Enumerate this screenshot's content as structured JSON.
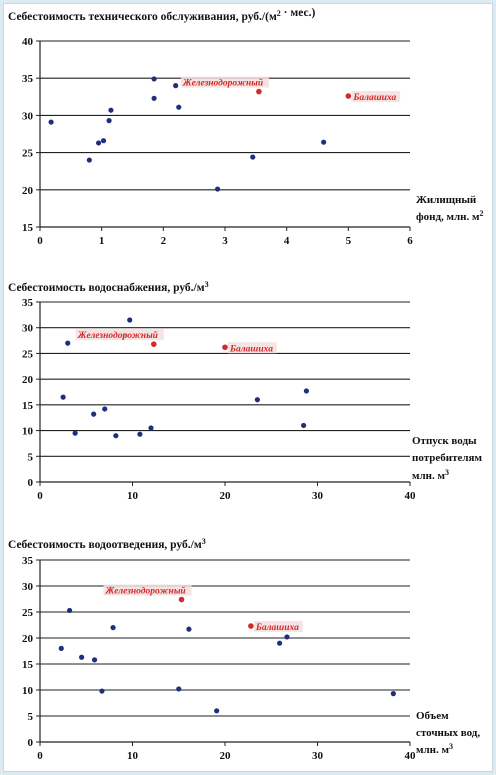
{
  "chart_data": [
    {
      "type": "scatter",
      "title": "Себестоимость технического обслуживания, руб./(м² · мес.)",
      "side_label": [
        "Жилищный",
        "фонд, млн. м²"
      ],
      "xlim": [
        0,
        6
      ],
      "ylim": [
        15,
        40
      ],
      "xticks": [
        0,
        1,
        2,
        3,
        4,
        5,
        6
      ],
      "yticks": [
        15,
        20,
        25,
        30,
        35,
        40
      ],
      "grid": "horizontal",
      "points": [
        {
          "x": 0.18,
          "y": 29.1
        },
        {
          "x": 0.8,
          "y": 24.0
        },
        {
          "x": 0.95,
          "y": 26.3
        },
        {
          "x": 1.03,
          "y": 26.6
        },
        {
          "x": 1.12,
          "y": 29.3
        },
        {
          "x": 1.15,
          "y": 30.7
        },
        {
          "x": 1.85,
          "y": 34.9
        },
        {
          "x": 1.85,
          "y": 32.3
        },
        {
          "x": 2.2,
          "y": 34.0
        },
        {
          "x": 2.25,
          "y": 31.1
        },
        {
          "x": 2.88,
          "y": 20.1
        },
        {
          "x": 3.45,
          "y": 24.4
        },
        {
          "x": 4.6,
          "y": 26.4
        }
      ],
      "highlight": [
        {
          "label": "Железнодорожный",
          "x": 3.55,
          "y": 33.2
        },
        {
          "label": "Балашиха",
          "x": 5.0,
          "y": 32.6
        }
      ]
    },
    {
      "type": "scatter",
      "title": "Себестоимость водоснабжения, руб./м³",
      "side_label": [
        "Отпуск воды",
        "потребителям",
        "млн. м³"
      ],
      "xlim": [
        0,
        40
      ],
      "ylim": [
        0,
        35
      ],
      "xticks": [
        0,
        10,
        20,
        30,
        40
      ],
      "yticks": [
        0,
        5,
        10,
        15,
        20,
        25,
        30,
        35
      ],
      "grid": "horizontal",
      "points": [
        {
          "x": 2.5,
          "y": 16.5
        },
        {
          "x": 3.0,
          "y": 27.0
        },
        {
          "x": 3.8,
          "y": 9.5
        },
        {
          "x": 5.8,
          "y": 13.2
        },
        {
          "x": 7.0,
          "y": 14.2
        },
        {
          "x": 8.2,
          "y": 9.0
        },
        {
          "x": 9.2,
          "y": 28.5
        },
        {
          "x": 9.7,
          "y": 31.5
        },
        {
          "x": 10.8,
          "y": 9.3
        },
        {
          "x": 12.0,
          "y": 10.5
        },
        {
          "x": 23.5,
          "y": 16.0
        },
        {
          "x": 28.5,
          "y": 11.0
        },
        {
          "x": 28.8,
          "y": 17.7
        }
      ],
      "highlight": [
        {
          "label": "Железнодорожный",
          "x": 12.3,
          "y": 26.8
        },
        {
          "label": "Балашиха",
          "x": 20.0,
          "y": 26.2
        }
      ]
    },
    {
      "type": "scatter",
      "title": "Себестоимость водоотведения, руб./м³",
      "side_label": [
        "Объем",
        "сточных вод,",
        "млн. м³"
      ],
      "xlim": [
        0,
        40
      ],
      "ylim": [
        0,
        35
      ],
      "xticks": [
        0,
        10,
        20,
        30,
        40
      ],
      "yticks": [
        0,
        5,
        10,
        15,
        20,
        25,
        30,
        35
      ],
      "grid": "horizontal",
      "points": [
        {
          "x": 2.3,
          "y": 18.0
        },
        {
          "x": 3.2,
          "y": 25.3
        },
        {
          "x": 4.5,
          "y": 16.3
        },
        {
          "x": 5.9,
          "y": 15.8
        },
        {
          "x": 6.7,
          "y": 9.8
        },
        {
          "x": 7.7,
          "y": 29.4
        },
        {
          "x": 7.9,
          "y": 22.0
        },
        {
          "x": 15.0,
          "y": 10.2
        },
        {
          "x": 16.1,
          "y": 21.7
        },
        {
          "x": 19.1,
          "y": 6.0
        },
        {
          "x": 25.9,
          "y": 19.0
        },
        {
          "x": 26.7,
          "y": 20.2
        },
        {
          "x": 38.2,
          "y": 9.3
        }
      ],
      "highlight": [
        {
          "label": "Железнодорожный",
          "x": 15.3,
          "y": 27.4
        },
        {
          "label": "Балашиха",
          "x": 22.8,
          "y": 22.3
        }
      ]
    }
  ],
  "colors": {
    "point": "#1f2f7d",
    "highlight": "#d42a2a",
    "grid": "#222222"
  }
}
